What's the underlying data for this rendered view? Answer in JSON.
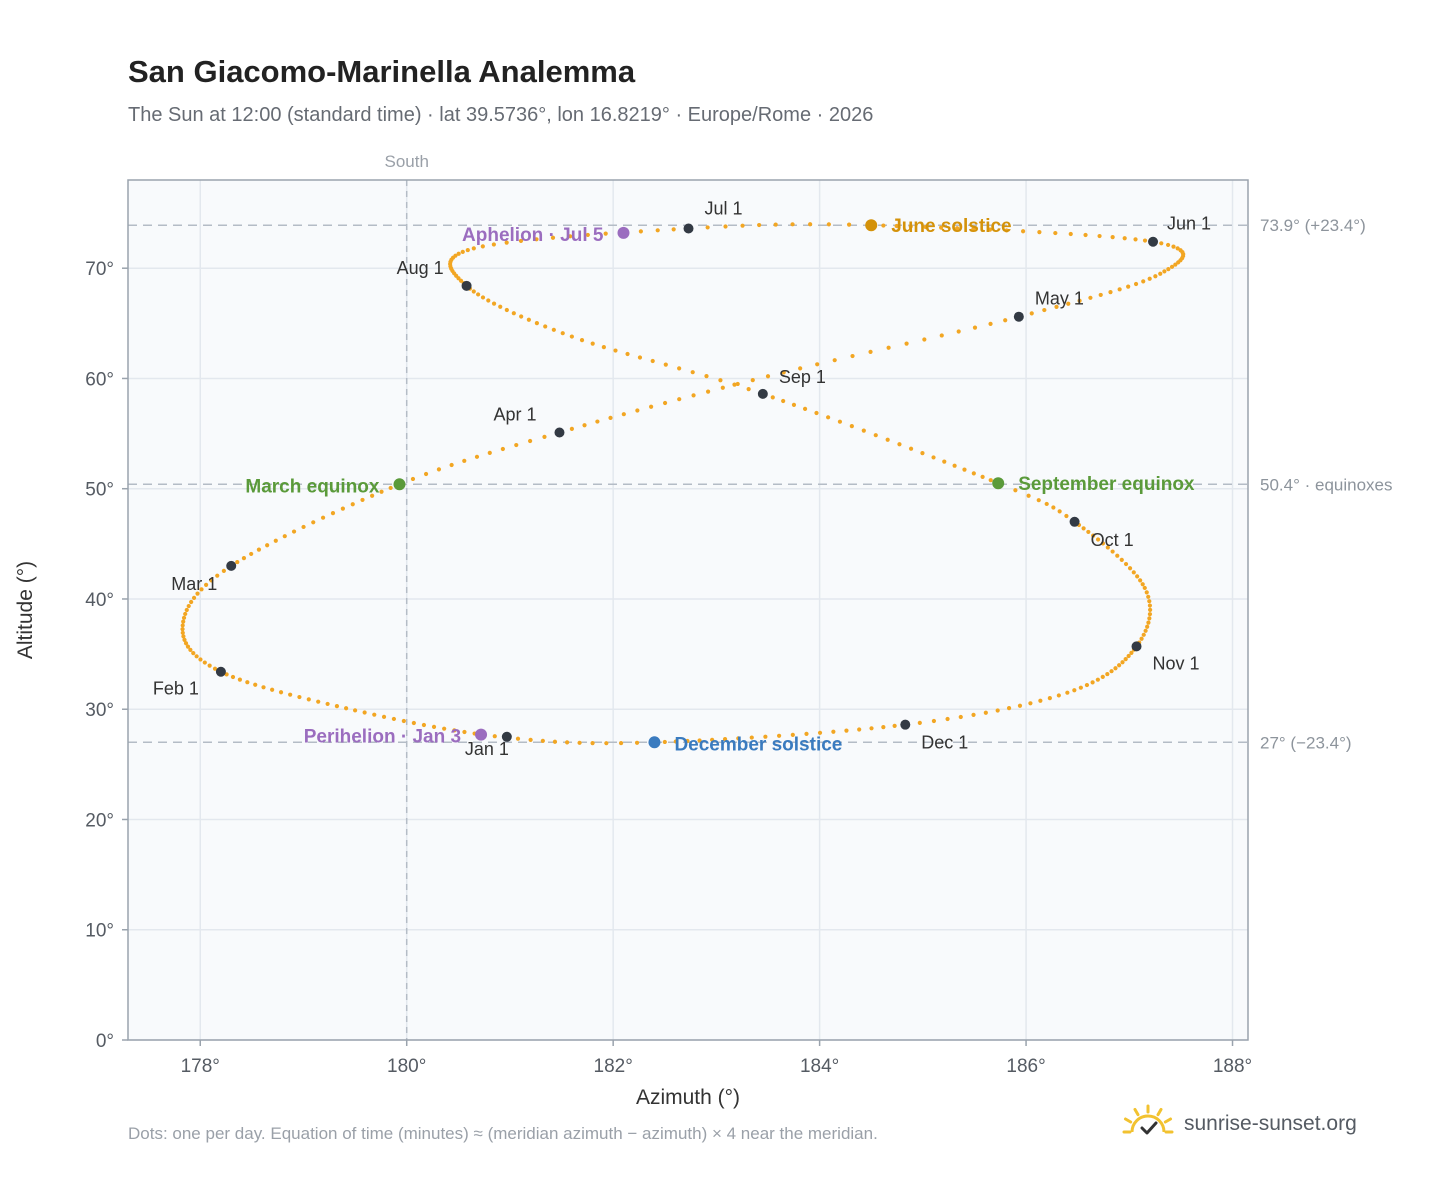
{
  "header": {
    "title": "San Giacomo-Marinella Analemma",
    "subtitle": "The Sun at 12:00 (standard time) · lat 39.5736°, lon 16.8219° · Europe/Rome · 2026"
  },
  "footer": {
    "footnote": "Dots: one per day. Equation of time (minutes) ≈ (meridian azimuth − azimuth) × 4 near the meridian.",
    "brand": "sunrise-sunset.org"
  },
  "colors": {
    "path": "#f2a623",
    "month_marker": "#333a44",
    "june_solstice": "#d4920a",
    "december_solstice": "#3a7bbf",
    "equinox": "#5a9a3a",
    "apsis": "#9b6dbf",
    "grid": "#e3e8ee",
    "plot_bg": "#f8fafc",
    "axis": "#9aa3ad",
    "brand_sun": "#f2c230"
  },
  "chart_data": {
    "type": "scatter",
    "xlabel": "Azimuth (°)",
    "ylabel": "Altitude (°)",
    "xlim": [
      177.3,
      181.6
    ],
    "ylim": [
      0,
      78
    ],
    "xticks": [
      178,
      180,
      182,
      184,
      186,
      188
    ],
    "xtick_labels": [
      "178°",
      "180°",
      "182°",
      "184°",
      "186°",
      "188°"
    ],
    "yticks": [
      0,
      10,
      20,
      30,
      40,
      50,
      60,
      70
    ],
    "ytick_labels": [
      "0°",
      "10°",
      "20°",
      "30°",
      "40°",
      "50°",
      "60°",
      "70°"
    ],
    "grid": true,
    "south_line": {
      "azimuth": 180,
      "label": "South"
    },
    "reference_lines": [
      {
        "altitude": 73.9,
        "label": "73.9° (+23.4°)"
      },
      {
        "altitude": 50.4,
        "label": "50.4° · equinoxes"
      },
      {
        "altitude": 27.0,
        "label": "27° (−23.4°)"
      }
    ],
    "month_markers": [
      {
        "label": "Jan 1",
        "az": 180.97,
        "alt": 27.5
      },
      {
        "label": "Feb 1",
        "az": 178.2,
        "alt": 33.4
      },
      {
        "label": "Mar 1",
        "az": 178.3,
        "alt": 43.0
      },
      {
        "label": "Apr 1",
        "az": 181.48,
        "alt": 55.1
      },
      {
        "label": "May 1",
        "az": 185.93,
        "alt": 65.6
      },
      {
        "label": "Jun 1",
        "az": 187.23,
        "alt": 72.4
      },
      {
        "label": "Jul 1",
        "az": 182.73,
        "alt": 73.6
      },
      {
        "label": "Aug 1",
        "az": 180.58,
        "alt": 68.4
      },
      {
        "label": "Sep 1",
        "az": 183.45,
        "alt": 58.6
      },
      {
        "label": "Oct 1",
        "az": 186.47,
        "alt": 47.0
      },
      {
        "label": "Nov 1",
        "az": 187.07,
        "alt": 35.7
      },
      {
        "label": "Dec 1",
        "az": 184.83,
        "alt": 28.6
      }
    ],
    "events": [
      {
        "label": "June solstice",
        "az": 184.5,
        "alt": 73.9,
        "kind": "june_solstice"
      },
      {
        "label": "December solstice",
        "az": 182.4,
        "alt": 27.0,
        "kind": "december_solstice"
      },
      {
        "label": "March equinox",
        "az": 179.93,
        "alt": 50.4,
        "kind": "equinox"
      },
      {
        "label": "September equinox",
        "az": 185.73,
        "alt": 50.5,
        "kind": "equinox"
      },
      {
        "label": "Aphelion · Jul 5",
        "az": 182.1,
        "alt": 73.2,
        "kind": "apsis"
      },
      {
        "label": "Perihelion · Jan 3",
        "az": 180.72,
        "alt": 27.7,
        "kind": "apsis"
      }
    ]
  }
}
